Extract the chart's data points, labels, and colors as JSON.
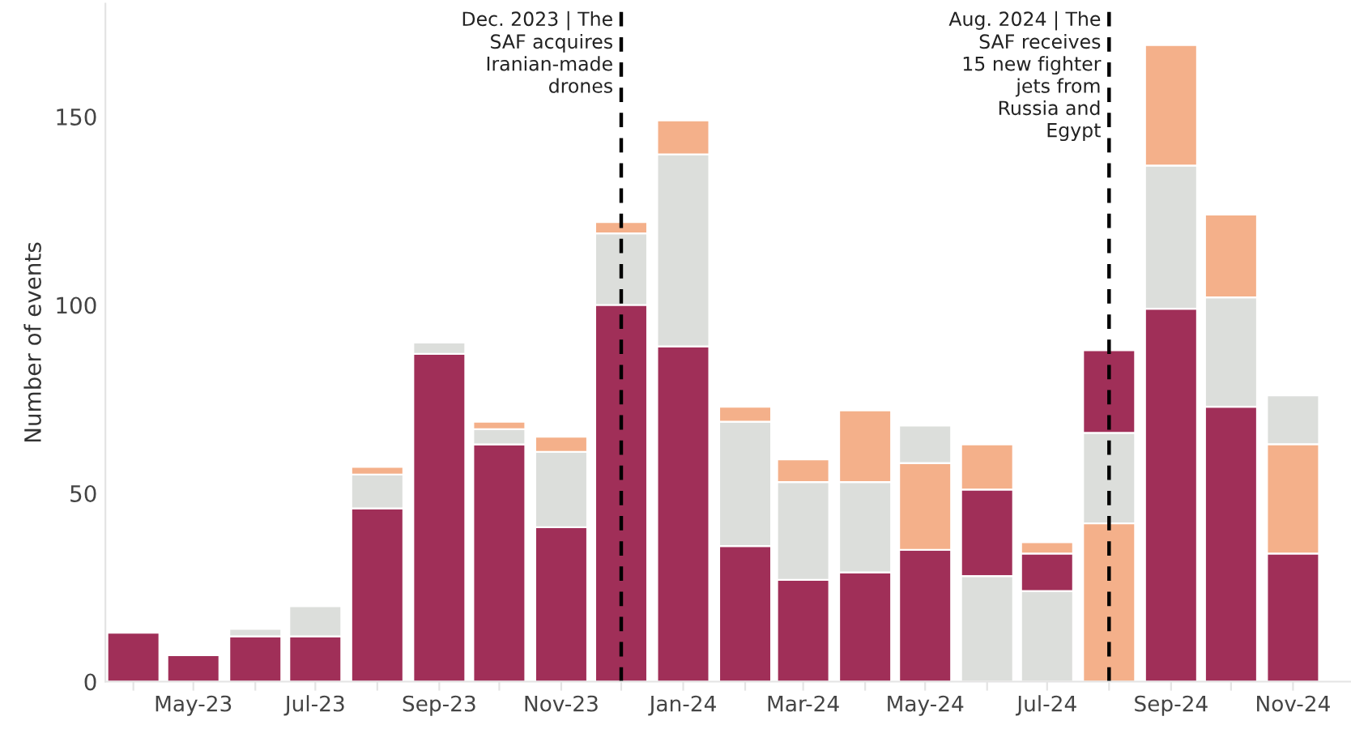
{
  "chart_data": {
    "type": "bar",
    "ylabel": "Number of events",
    "x": [
      "2023-04",
      "2023-05",
      "2023-06",
      "2023-07",
      "2023-08",
      "2023-09",
      "2023-10",
      "2023-11",
      "2023-12",
      "2024-01",
      "2024-02",
      "2024-03",
      "2024-04",
      "2024-05",
      "2024-06",
      "2024-07",
      "2024-08",
      "2024-09",
      "2024-10",
      "2024-11"
    ],
    "series": [
      {
        "color": "#a02f58",
        "values": [
          13,
          7,
          12,
          12,
          46,
          87,
          63,
          41,
          100,
          89,
          36,
          27,
          29,
          35,
          23,
          10,
          22,
          99,
          73,
          34
        ],
        "base": [
          0,
          0,
          0,
          0,
          0,
          0,
          0,
          0,
          0,
          0,
          0,
          0,
          0,
          0,
          28,
          24,
          66,
          0,
          0,
          0
        ]
      },
      {
        "color": "#dcdedb",
        "values": [
          null,
          null,
          2,
          8,
          9,
          3,
          4,
          20,
          19,
          51,
          33,
          26,
          24,
          10,
          28,
          24,
          24,
          38,
          29,
          13
        ],
        "base": [
          null,
          null,
          12,
          12,
          46,
          87,
          63,
          41,
          100,
          89,
          36,
          27,
          29,
          58,
          0,
          0,
          42,
          99,
          73,
          63
        ]
      },
      {
        "color": "#f4b08a",
        "values": [
          null,
          null,
          null,
          null,
          2,
          null,
          2,
          4,
          3,
          9,
          4,
          6,
          19,
          23,
          12,
          3,
          42,
          32,
          22,
          29
        ],
        "base": [
          null,
          null,
          null,
          null,
          55,
          null,
          67,
          61,
          119,
          140,
          69,
          53,
          53,
          35,
          51,
          34,
          0,
          137,
          102,
          34
        ]
      }
    ],
    "xlim": [
      "2023-03-18",
      "2024-11-30"
    ],
    "xticks": [
      {
        "value": "2023-04",
        "label": null
      },
      {
        "value": "2023-05",
        "label": "May-23"
      },
      {
        "value": "2023-06",
        "label": null
      },
      {
        "value": "2023-07",
        "label": "Jul-23"
      },
      {
        "value": "2023-08",
        "label": null
      },
      {
        "value": "2023-09",
        "label": "Sep-23"
      },
      {
        "value": "2023-10",
        "label": null
      },
      {
        "value": "2023-11",
        "label": "Nov-23"
      },
      {
        "value": "2023-12",
        "label": null
      },
      {
        "value": "2024-01",
        "label": "Jan-24"
      },
      {
        "value": "2024-02",
        "label": null
      },
      {
        "value": "2024-03",
        "label": "Mar-24"
      },
      {
        "value": "2024-04",
        "label": null
      },
      {
        "value": "2024-05",
        "label": "May-24"
      },
      {
        "value": "2024-06",
        "label": null
      },
      {
        "value": "2024-07",
        "label": "Jul-24"
      },
      {
        "value": "2024-08",
        "label": null
      },
      {
        "value": "2024-09",
        "label": "Sep-24"
      },
      {
        "value": "2024-10",
        "label": null
      },
      {
        "value": "2024-11",
        "label": "Nov-24"
      }
    ],
    "ylim": [
      0,
      180
    ],
    "yticks": [
      0,
      50,
      100,
      150
    ],
    "grid": false,
    "legend": false,
    "ref_lines": [
      {
        "axis": "x",
        "value": "2023-12",
        "label": "Dec. 2023 | The\nSAF acquires\nIranian-made\ndrones",
        "color": "#000000",
        "line_style": "dashed"
      },
      {
        "axis": "x",
        "value": "2024-08",
        "label": "Aug. 2024 | The\nSAF receives\n15 new fighter\njets from\nRussia and\nEgypt",
        "color": "#000000",
        "line_style": "dashed"
      }
    ]
  }
}
